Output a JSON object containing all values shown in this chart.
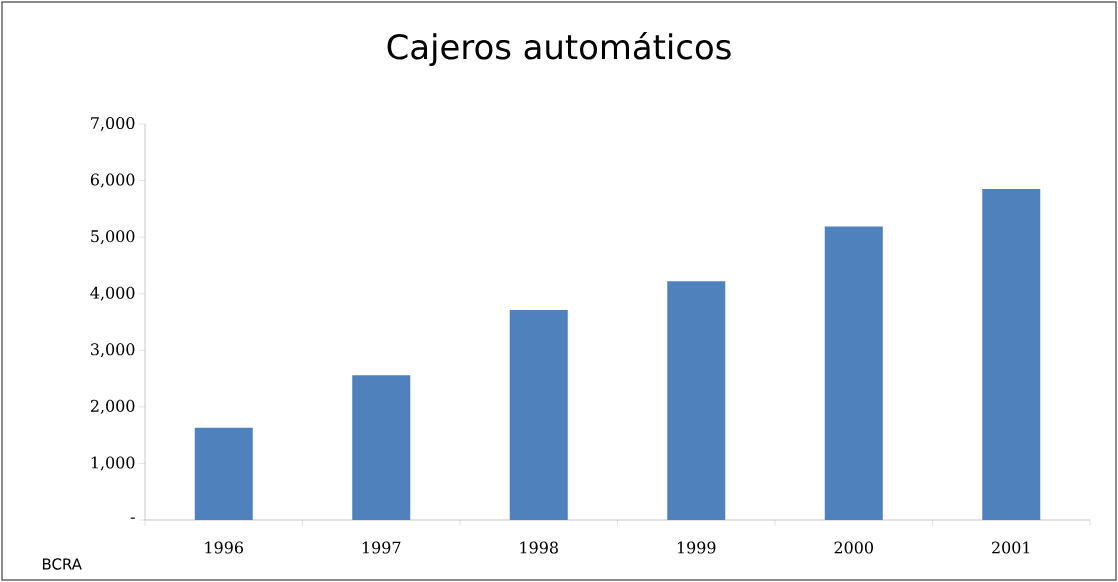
{
  "chart_data": {
    "type": "bar",
    "title": "Cajeros automáticos",
    "categories": [
      "1996",
      "1997",
      "1998",
      "1999",
      "2000",
      "2001"
    ],
    "values": [
      1630,
      2560,
      3710,
      4220,
      5190,
      5850
    ],
    "color": "#4f81bd",
    "ylim": [
      0,
      7000
    ],
    "yticks": [
      {
        "value": 0,
        "label": "-"
      },
      {
        "value": 1000,
        "label": "1,000"
      },
      {
        "value": 2000,
        "label": "2,000"
      },
      {
        "value": 3000,
        "label": "3,000"
      },
      {
        "value": 4000,
        "label": "4,000"
      },
      {
        "value": 5000,
        "label": "5,000"
      },
      {
        "value": 6000,
        "label": "6,000"
      },
      {
        "value": 7000,
        "label": "7,000"
      }
    ],
    "annotations": [
      "BCRA"
    ]
  }
}
